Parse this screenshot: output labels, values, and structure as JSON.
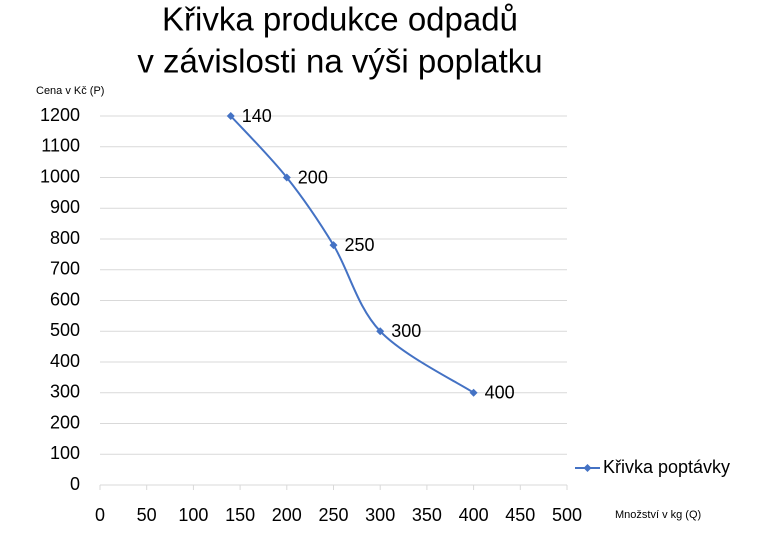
{
  "chart_data": {
    "type": "scatter",
    "title": [
      "Křivka produkce odpadů",
      "v závislosti na výši poplatku"
    ],
    "y_label": "Cena v Kč (P)",
    "x_label": "Množství v kg (Q)",
    "series": [
      {
        "name": "Křivka poptávky",
        "color": "#4472c4",
        "x": [
          140,
          200,
          250,
          300,
          400
        ],
        "values": [
          1200,
          1000,
          780,
          500,
          300
        ]
      }
    ],
    "xlim": [
      0,
      500
    ],
    "xticks": [
      0,
      50,
      100,
      150,
      200,
      250,
      300,
      350,
      400,
      450,
      500
    ],
    "ylim": [
      0,
      1200
    ],
    "yticks": [
      0,
      100,
      200,
      300,
      400,
      500,
      600,
      700,
      800,
      900,
      1000,
      1100,
      1200
    ],
    "grid": true,
    "legend": "right"
  }
}
